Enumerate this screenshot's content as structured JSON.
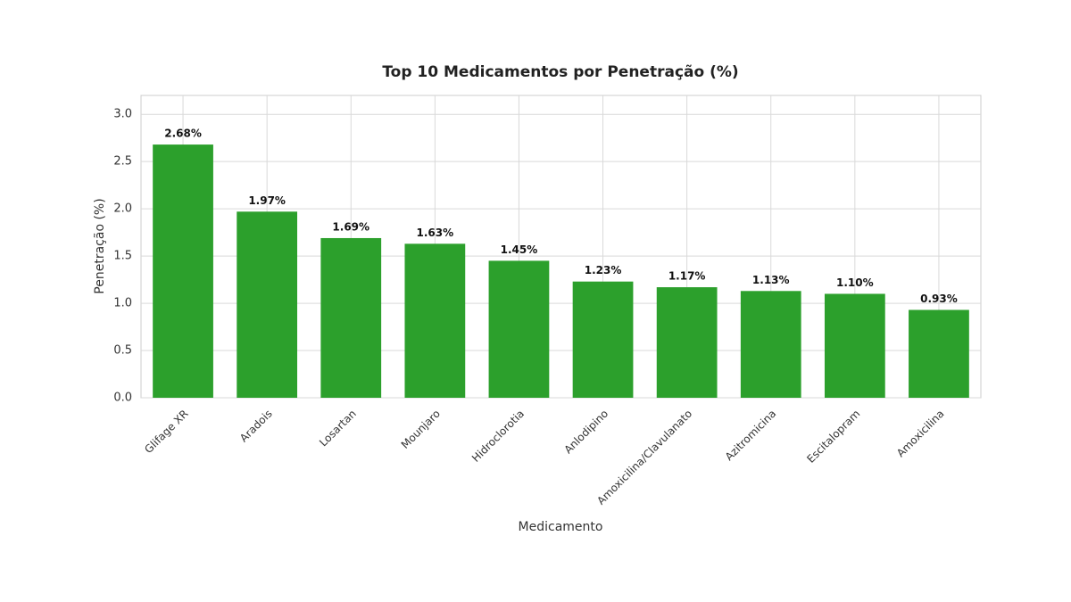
{
  "chart_data": {
    "type": "bar",
    "title": "Top 10 Medicamentos por Penetração (%)",
    "x_label": "Medicamento",
    "y_label": "Penetração (%)",
    "categories": [
      "Glifage XR",
      "Aradois",
      "Losartan",
      "Mounjaro",
      "Hidroclorotia",
      "Anlodipino",
      "Amoxicilina/Clavulanato",
      "Azitromicina",
      "Escitalopram",
      "Amoxicilina"
    ],
    "values": [
      2.68,
      1.97,
      1.69,
      1.63,
      1.45,
      1.23,
      1.17,
      1.13,
      1.1,
      0.93
    ],
    "value_labels": [
      "2.68%",
      "1.97%",
      "1.69%",
      "1.63%",
      "1.45%",
      "1.23%",
      "1.17%",
      "1.13%",
      "1.10%",
      "0.93%"
    ],
    "color": "#2ca02c",
    "ylim": [
      0,
      3.2
    ],
    "yticks": [
      {
        "value": 0,
        "label": "0.0"
      },
      0.5,
      {
        "value": 1,
        "label": "1.0"
      },
      1.5,
      {
        "value": 2,
        "label": "2.0"
      },
      2.5,
      {
        "value": 3,
        "label": "3.0"
      }
    ],
    "grid": true
  }
}
